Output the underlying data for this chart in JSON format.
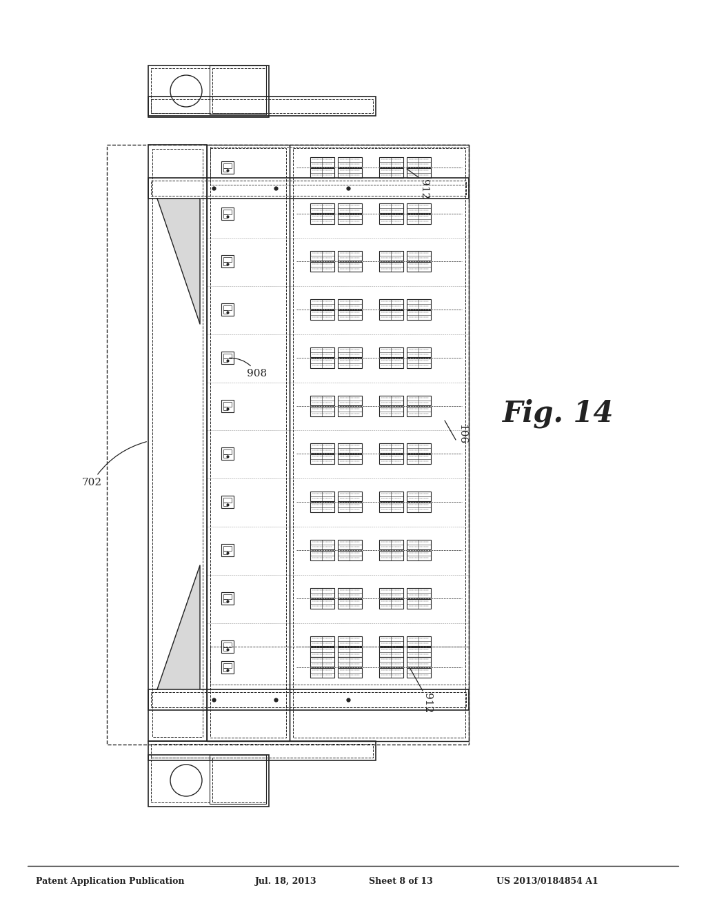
{
  "bg_color": "#ffffff",
  "header_text": "Patent Application Publication",
  "header_date": "Jul. 18, 2013",
  "header_sheet": "Sheet 8 of 13",
  "header_patent": "US 2013/0184854 A1",
  "fig_label": "Fig. 14",
  "line_color": "#222222",
  "gray_fill": "#d8d8d8",
  "light_gray": "#eeeeee"
}
